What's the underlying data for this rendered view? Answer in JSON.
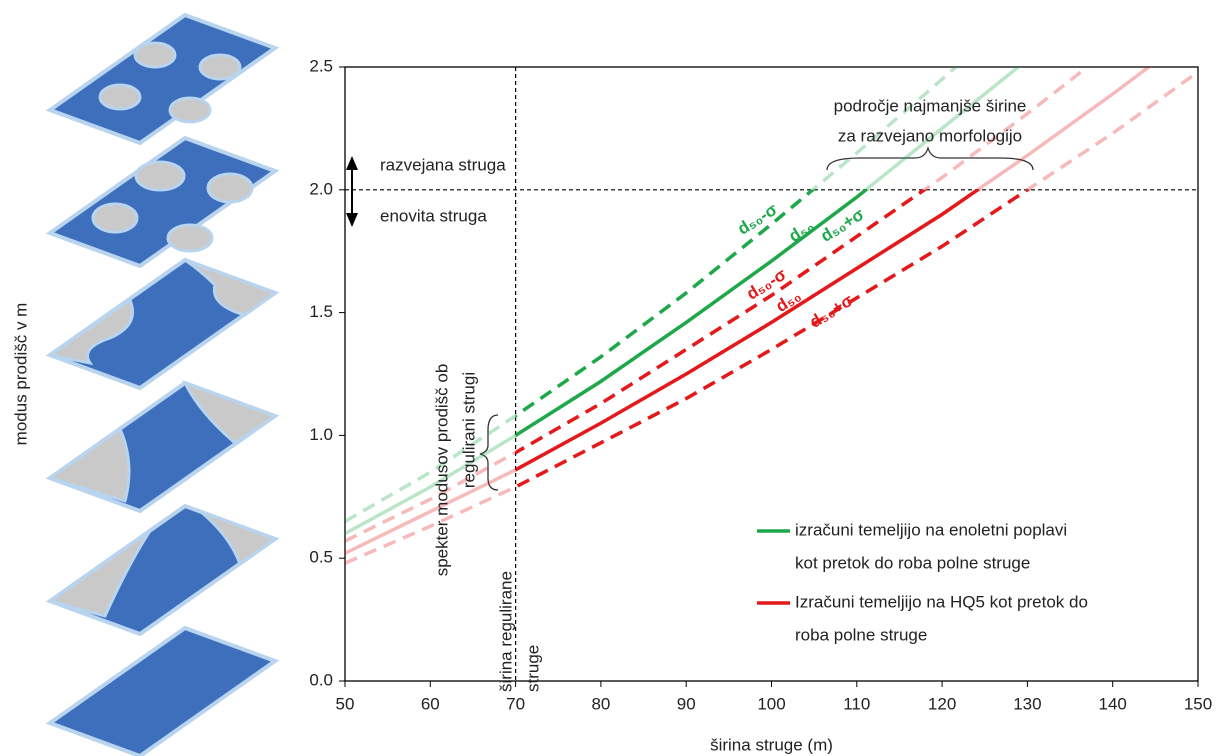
{
  "chart_data": {
    "type": "line",
    "x_label": "širina struge (m)",
    "y_label": "modus prodišč v m",
    "x": [
      50,
      60,
      70,
      80,
      90,
      100,
      110,
      120,
      130,
      140,
      150
    ],
    "xlim": [
      50,
      150
    ],
    "ylim": [
      0,
      2.5
    ],
    "xticks": [
      50,
      60,
      70,
      80,
      90,
      100,
      110,
      120,
      130,
      140,
      150
    ],
    "yticks": [
      {
        "value": 0,
        "label": "0.0"
      },
      {
        "value": 0.5,
        "label": "0.5"
      },
      {
        "value": 1,
        "label": "1.0"
      },
      {
        "value": 1.5,
        "label": "1.5"
      },
      {
        "value": 2,
        "label": "2.0"
      },
      {
        "value": 2.5,
        "label": "2.5"
      }
    ],
    "series": [
      {
        "color": "#1ea84a",
        "dash": true,
        "values": [
          0.65,
          0.85,
          1.08,
          1.32,
          1.58,
          1.86,
          2.15,
          2.45,
          2.76,
          null,
          null
        ]
      },
      {
        "color": "#1ea84a",
        "dash": false,
        "values": [
          0.6,
          0.79,
          1.0,
          1.22,
          1.46,
          1.71,
          1.97,
          2.25,
          2.53,
          null,
          null
        ]
      },
      {
        "color": "#e3191c",
        "dash": true,
        "values": [
          0.57,
          0.74,
          0.93,
          1.13,
          1.35,
          1.57,
          1.81,
          2.05,
          2.31,
          2.58,
          null
        ]
      },
      {
        "color": "#e3191c",
        "dash": false,
        "values": [
          0.52,
          0.69,
          0.86,
          1.05,
          1.25,
          1.46,
          1.68,
          1.9,
          2.14,
          2.39,
          2.65
        ]
      },
      {
        "color": "#e3191c",
        "dash": true,
        "values": [
          0.48,
          0.63,
          0.79,
          0.97,
          1.15,
          1.35,
          1.56,
          1.77,
          2.0,
          2.23,
          2.48
        ]
      }
    ],
    "reference_lines": {
      "x": 70,
      "y": 2
    },
    "curve_labels": [
      {
        "text": "d₅₀-σ",
        "color": "#1ea84a"
      },
      {
        "text": "d₅₀",
        "color": "#1ea84a"
      },
      {
        "text": "d₅₀+σ",
        "color": "#1ea84a"
      },
      {
        "text": "d₅₀-σ",
        "color": "#e3191c"
      },
      {
        "text": "d₅₀",
        "color": "#e3191c"
      },
      {
        "text": "d₅₀+σ",
        "color": "#e3191c"
      }
    ],
    "annotations": [
      {
        "lines": [
          "razvejana struga"
        ]
      },
      {
        "lines": [
          "enovita struga"
        ]
      },
      {
        "lines": [
          "področje najmanjše širine",
          "za razvejano morfologijo"
        ]
      },
      {
        "lines": [
          "spekter modusov prodišč ob",
          "regulirani strugi"
        ]
      },
      {
        "lines": [
          "širina regulirane",
          "struge"
        ]
      }
    ],
    "legend": [
      {
        "color": "#1ea84a",
        "lines": [
          "izračuni temeljijo na enoletni poplavi",
          "kot pretok do roba polne struge"
        ]
      },
      {
        "color": "#e3191c",
        "lines": [
          "Izračuni temeljijo na HQ5 kot pretok do",
          "roba polne struge"
        ]
      }
    ]
  }
}
